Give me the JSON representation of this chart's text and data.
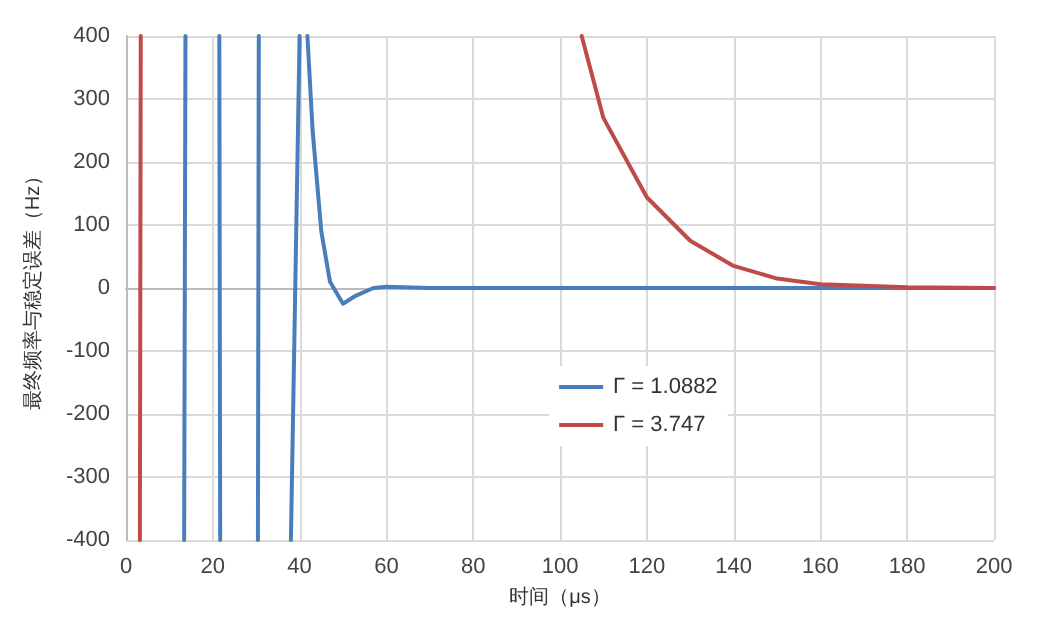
{
  "chart_data": {
    "type": "line",
    "xlabel": "时间（μs）",
    "ylabel": "最终频率与稳定误差（Hz）",
    "xlim": [
      0,
      200
    ],
    "xticks": [
      0,
      20,
      40,
      60,
      80,
      100,
      120,
      140,
      160,
      180,
      200
    ],
    "ylim": [
      -400,
      400
    ],
    "yticks": [
      -400,
      -300,
      -200,
      -100,
      0,
      100,
      200,
      300,
      400
    ],
    "grid": true,
    "legend": "center",
    "marker": "none",
    "line_style": "solid",
    "series": [
      {
        "name": "Γ = 1.0882",
        "color": "#4a7ebb",
        "x": [
          13.4,
          13.7,
          13.8,
          21.5,
          21.7,
          21.8,
          30.4,
          30.6,
          30.7,
          38,
          40,
          40.5,
          41.8,
          43,
          45,
          47,
          50,
          53,
          57,
          60,
          70,
          100,
          150,
          200
        ],
        "values": [
          -400,
          400,
          null,
          400,
          -400,
          null,
          -400,
          400,
          null,
          -400,
          400,
          null,
          400,
          250,
          90,
          10,
          -25,
          -12,
          0,
          2,
          0,
          0,
          0,
          0
        ]
      },
      {
        "name": "Γ = 3.747",
        "color": "#be4b48",
        "x": [
          3.2,
          3.4,
          104,
          105,
          110,
          120,
          130,
          140,
          150,
          160,
          180,
          200
        ],
        "values": [
          -400,
          400,
          null,
          400,
          270,
          144,
          75,
          35,
          15,
          6,
          1,
          0
        ]
      }
    ]
  }
}
